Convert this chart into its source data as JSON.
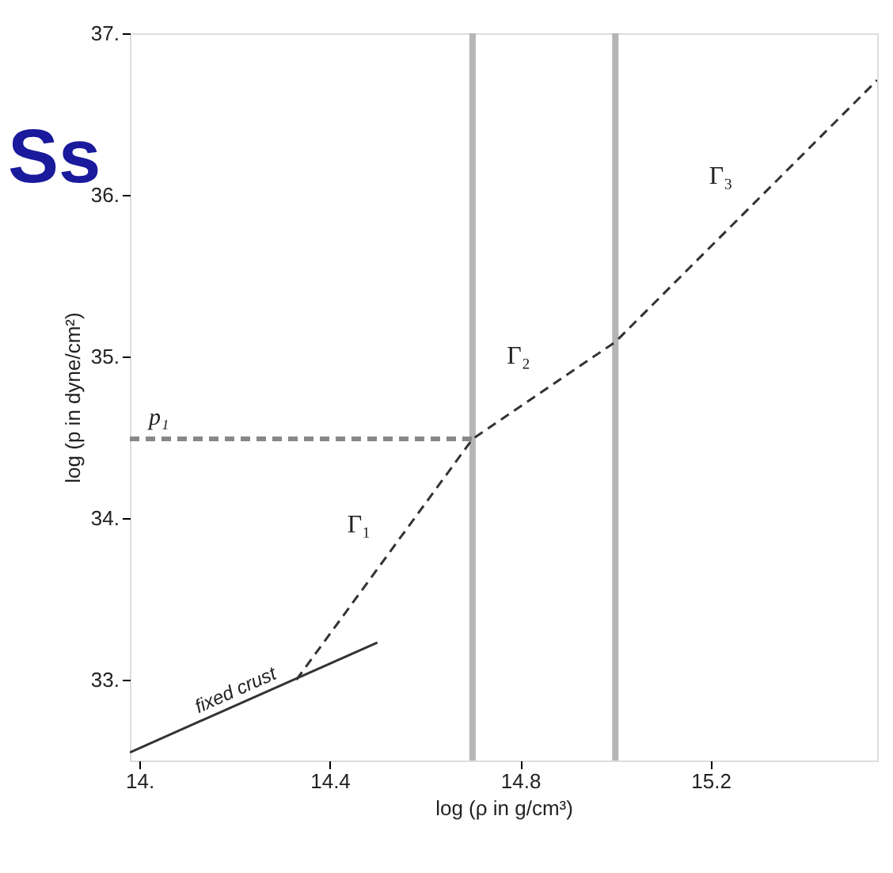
{
  "chart_data": {
    "type": "line",
    "xlabel": "log (ρ in g/cm³)",
    "ylabel": "log (p in dyne/cm²)",
    "xlim": [
      13.98,
      15.55
    ],
    "ylim": [
      32.5,
      37.0
    ],
    "xticks": [
      {
        "value": 14,
        "label": "14."
      },
      14.4,
      14.8,
      15.2
    ],
    "yticks": [
      {
        "value": 33,
        "label": "33."
      },
      {
        "value": 34,
        "label": "34."
      },
      {
        "value": 35,
        "label": "35."
      },
      {
        "value": 36,
        "label": "36."
      },
      {
        "value": 37,
        "label": "37."
      }
    ],
    "grid": false,
    "legend": false,
    "series": [
      {
        "name": "fixed crust",
        "color": "#333333",
        "line_style": "solid",
        "x": [
          13.98,
          14.5
        ],
        "values": [
          32.55,
          33.23
        ]
      },
      {
        "color": "#333333",
        "line_style": "dashed",
        "x": [
          14.33,
          14.7,
          15.0,
          15.55
        ],
        "values": [
          33.0,
          34.49,
          35.09,
          36.71
        ]
      },
      {
        "name": "p₁",
        "color": "#888888",
        "line_style": "dashed",
        "x": [
          13.98,
          14.7
        ],
        "values": [
          34.49,
          34.49
        ]
      }
    ],
    "ref_lines": [
      {
        "axis": "x",
        "value": 14.7,
        "color": "#b5b5b5"
      },
      {
        "axis": "x",
        "value": 15.0,
        "color": "#b5b5b5"
      }
    ],
    "annotations": [
      "Γ₁",
      "Γ₂",
      "Γ₃",
      "Ss"
    ]
  }
}
